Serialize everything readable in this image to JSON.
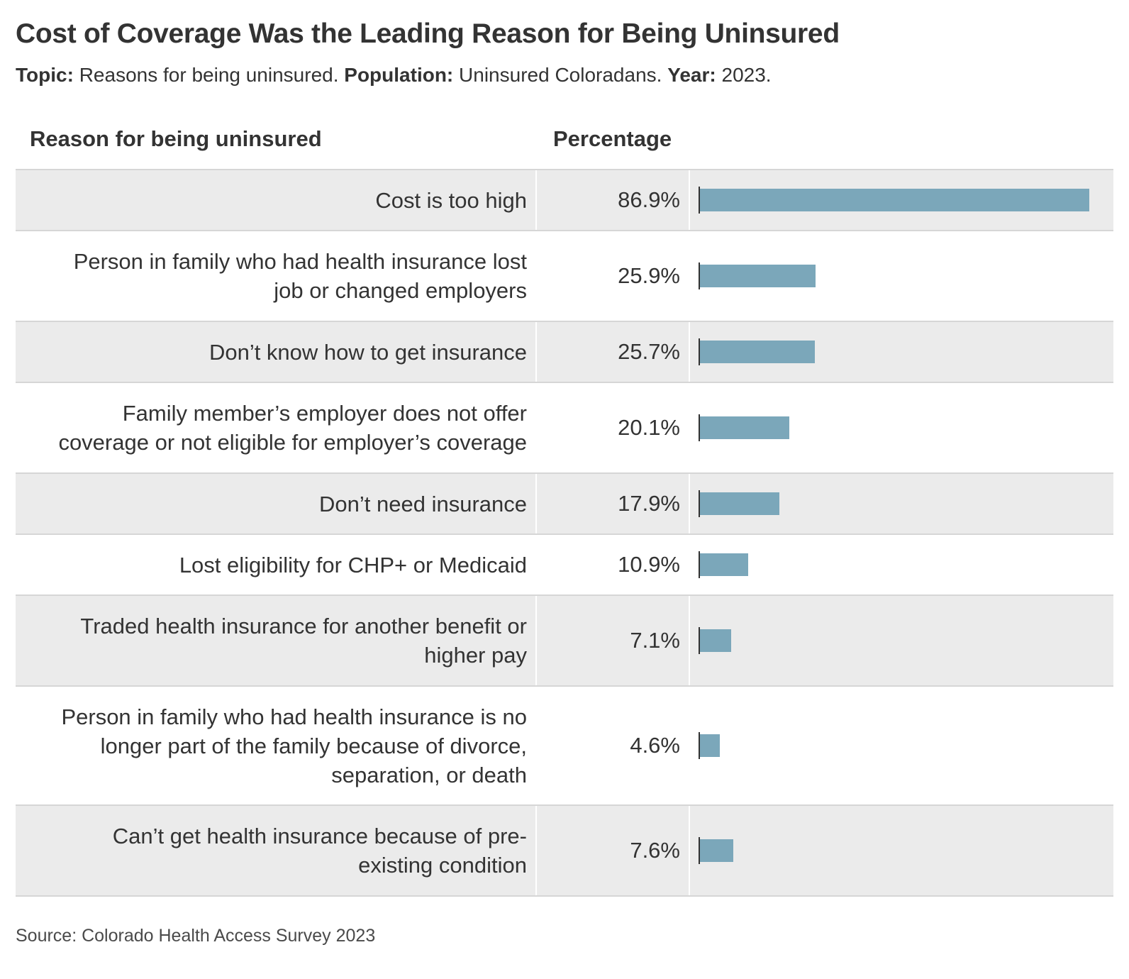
{
  "title": "Cost of Coverage Was the Leading Reason for Being Uninsured",
  "subtitle": {
    "topic_label": "Topic:",
    "topic_value": "Reasons for being uninsured.",
    "population_label": "Population:",
    "population_value": "Uninsured Coloradans.",
    "year_label": "Year:",
    "year_value": "2023."
  },
  "columns": {
    "reason": "Reason for being uninsured",
    "percentage": "Percentage"
  },
  "source": "Source: Colorado Health Access Survey 2023",
  "colors": {
    "bar": "#7ba7ba",
    "shaded_row": "#ebebeb",
    "divider": "#d6d6d6"
  },
  "chart_data": {
    "type": "bar",
    "orientation": "horizontal",
    "title": "Cost of Coverage Was the Leading Reason for Being Uninsured",
    "xlim": [
      0,
      86.9
    ],
    "categories": [
      "Cost is too high",
      "Person in family who had health insurance lost job or changed employers",
      "Don’t know how to get insurance",
      "Family member’s employer does not offer coverage or not eligible for employer’s coverage",
      "Don’t need insurance",
      "Lost eligibility for CHP+ or Medicaid",
      "Traded health insurance for another benefit or higher pay",
      "Person in family who had health insurance is no longer part of the family because of divorce, separation, or death",
      "Can’t get health insurance because of pre-existing condition"
    ],
    "values": [
      86.9,
      25.9,
      25.7,
      20.1,
      17.9,
      10.9,
      7.1,
      4.6,
      7.6
    ],
    "value_labels": [
      "86.9%",
      "25.9%",
      "25.7%",
      "20.1%",
      "17.9%",
      "10.9%",
      "7.1%",
      "4.6%",
      "7.6%"
    ],
    "label_lines": [
      [
        "Cost is too high"
      ],
      [
        "Person in family who had health insurance lost",
        "job or changed employers"
      ],
      [
        "Don’t know how to get insurance"
      ],
      [
        "Family member’s employer does not offer",
        "coverage or not eligible for employer’s coverage"
      ],
      [
        "Don’t need insurance"
      ],
      [
        "Lost eligibility for CHP+ or Medicaid"
      ],
      [
        "Traded health insurance for another benefit or",
        "higher pay"
      ],
      [
        "Person in family who had health insurance is no",
        "longer part of the family because of divorce,",
        "separation, or death"
      ],
      [
        "Can’t get health insurance because of pre-",
        "existing condition"
      ]
    ]
  }
}
